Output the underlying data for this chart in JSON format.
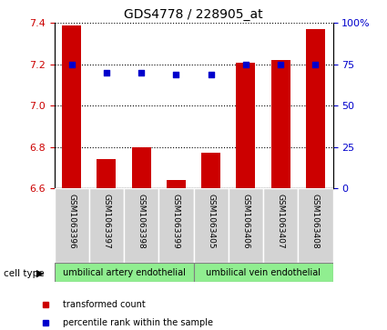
{
  "title": "GDS4778 / 228905_at",
  "samples": [
    "GSM1063396",
    "GSM1063397",
    "GSM1063398",
    "GSM1063399",
    "GSM1063405",
    "GSM1063406",
    "GSM1063407",
    "GSM1063408"
  ],
  "bar_values": [
    7.39,
    6.74,
    6.8,
    6.64,
    6.77,
    7.21,
    7.22,
    7.37
  ],
  "percentile_values": [
    75,
    70,
    70,
    69,
    69,
    75,
    75,
    75
  ],
  "ylim_left": [
    6.6,
    7.4
  ],
  "ylim_right": [
    0,
    100
  ],
  "y_ticks_left": [
    6.6,
    6.8,
    7.0,
    7.2,
    7.4
  ],
  "y_ticks_right": [
    0,
    25,
    50,
    75,
    100
  ],
  "bar_color": "#cc0000",
  "dot_color": "#0000cc",
  "group1_label": "umbilical artery endothelial",
  "group2_label": "umbilical vein endothelial",
  "group_color": "#90ee90",
  "cell_type_label": "cell type",
  "legend_bar_label": "transformed count",
  "legend_dot_label": "percentile rank within the sample",
  "background_color": "#ffffff",
  "tick_label_bg": "#d3d3d3"
}
